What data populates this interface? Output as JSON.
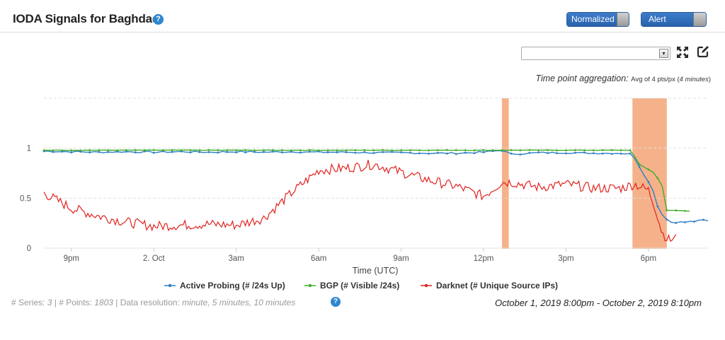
{
  "header": {
    "title": "IODA Signals for Baghdad",
    "help_glyph": "?",
    "normalized_label": "Normalized",
    "alert_bands_label": "Alert Bands"
  },
  "controls": {
    "select_value": "",
    "select_arrow": "▾",
    "fullscreen_icon": "fullscreen-icon",
    "edit_icon": "edit-icon"
  },
  "aggregation": {
    "label": "Time point aggregation:",
    "value_pre": "Avg of 4 pts/px (",
    "value_mid": "4 minutes",
    "value_post": ")"
  },
  "footer": {
    "series_label": "# Series: ",
    "series_value": "3",
    "sep1": " | ",
    "points_label": "# Points: ",
    "points_value": "1803",
    "sep2": " | ",
    "resolution_label": "Data resolution: ",
    "resolution_value": "minute, 5 minutes, 10 minutes",
    "range": "October 1, 2019 8:00pm - October 2, 2019 8:10pm"
  },
  "colors": {
    "active_probing": "#2f7ec4",
    "bgp": "#3fae2a",
    "darknet": "#e0231f",
    "alert_band": "#f3a476",
    "grid": "#e0e0e0"
  },
  "chart_data": {
    "type": "line",
    "title": "",
    "xlabel": "Time (UTC)",
    "ylabel": "",
    "x_start": "2019-10-01T20:00Z",
    "x_end": "2019-10-02T20:10Z",
    "x_ticks": [
      "9pm",
      "2. Oct",
      "3am",
      "6am",
      "9am",
      "12pm",
      "3pm",
      "6pm"
    ],
    "y_ticks": [
      "0",
      "0.5",
      "1"
    ],
    "ylim": [
      0,
      1.5
    ],
    "grid": true,
    "legend_position": "bottom",
    "alert_bands": [
      {
        "start": "2019-10-02T12:40Z",
        "end": "2019-10-02T12:55Z"
      },
      {
        "start": "2019-10-02T17:25Z",
        "end": "2019-10-02T18:40Z"
      }
    ],
    "series": [
      {
        "name": "Active Probing (# /24s Up)",
        "color": "#2f7ec4",
        "marker": "dot",
        "points": [
          [
            "2019-10-01T20:00Z",
            0.97
          ],
          [
            "2019-10-01T21:00Z",
            0.965
          ],
          [
            "2019-10-01T22:00Z",
            0.96
          ],
          [
            "2019-10-01T23:00Z",
            0.965
          ],
          [
            "2019-10-02T00:00Z",
            0.96
          ],
          [
            "2019-10-02T01:00Z",
            0.965
          ],
          [
            "2019-10-02T02:00Z",
            0.96
          ],
          [
            "2019-10-02T03:00Z",
            0.965
          ],
          [
            "2019-10-02T04:00Z",
            0.96
          ],
          [
            "2019-10-02T05:00Z",
            0.965
          ],
          [
            "2019-10-02T06:00Z",
            0.96
          ],
          [
            "2019-10-02T07:00Z",
            0.96
          ],
          [
            "2019-10-02T08:00Z",
            0.955
          ],
          [
            "2019-10-02T09:00Z",
            0.955
          ],
          [
            "2019-10-02T10:00Z",
            0.95
          ],
          [
            "2019-10-02T11:00Z",
            0.95
          ],
          [
            "2019-10-02T12:00Z",
            0.96
          ],
          [
            "2019-10-02T12:40Z",
            0.98
          ],
          [
            "2019-10-02T13:00Z",
            0.94
          ],
          [
            "2019-10-02T14:00Z",
            0.955
          ],
          [
            "2019-10-02T15:00Z",
            0.955
          ],
          [
            "2019-10-02T16:00Z",
            0.95
          ],
          [
            "2019-10-02T17:00Z",
            0.95
          ],
          [
            "2019-10-02T17:25Z",
            0.94
          ],
          [
            "2019-10-02T17:40Z",
            0.82
          ],
          [
            "2019-10-02T17:55Z",
            0.7
          ],
          [
            "2019-10-02T18:10Z",
            0.58
          ],
          [
            "2019-10-02T18:20Z",
            0.42
          ],
          [
            "2019-10-02T18:35Z",
            0.3
          ],
          [
            "2019-10-02T18:50Z",
            0.26
          ],
          [
            "2019-10-02T19:20Z",
            0.26
          ],
          [
            "2019-10-02T19:45Z",
            0.27
          ],
          [
            "2019-10-02T20:00Z",
            0.28
          ],
          [
            "2019-10-02T20:10Z",
            0.27
          ]
        ]
      },
      {
        "name": "BGP (# Visible /24s)",
        "color": "#3fae2a",
        "marker": "dot",
        "points": [
          [
            "2019-10-01T20:00Z",
            0.98
          ],
          [
            "2019-10-02T05:00Z",
            0.98
          ],
          [
            "2019-10-02T10:00Z",
            0.98
          ],
          [
            "2019-10-02T12:40Z",
            0.98
          ],
          [
            "2019-10-02T15:00Z",
            0.98
          ],
          [
            "2019-10-02T17:25Z",
            0.98
          ],
          [
            "2019-10-02T17:35Z",
            0.85
          ],
          [
            "2019-10-02T17:55Z",
            0.8
          ],
          [
            "2019-10-02T18:10Z",
            0.76
          ],
          [
            "2019-10-02T18:20Z",
            0.7
          ],
          [
            "2019-10-02T18:30Z",
            0.62
          ],
          [
            "2019-10-02T18:40Z",
            0.38
          ],
          [
            "2019-10-02T19:30Z",
            0.37
          ]
        ]
      },
      {
        "name": "Darknet (# Unique Source IPs)",
        "color": "#e0231f",
        "marker": "dot",
        "points": [
          [
            "2019-10-01T20:00Z",
            0.55
          ],
          [
            "2019-10-01T21:00Z",
            0.4
          ],
          [
            "2019-10-01T22:00Z",
            0.32
          ],
          [
            "2019-10-01T23:00Z",
            0.26
          ],
          [
            "2019-10-02T00:00Z",
            0.22
          ],
          [
            "2019-10-02T01:00Z",
            0.23
          ],
          [
            "2019-10-02T02:00Z",
            0.24
          ],
          [
            "2019-10-02T03:00Z",
            0.23
          ],
          [
            "2019-10-02T04:00Z",
            0.3
          ],
          [
            "2019-10-02T05:00Z",
            0.55
          ],
          [
            "2019-10-02T06:00Z",
            0.78
          ],
          [
            "2019-10-02T07:00Z",
            0.8
          ],
          [
            "2019-10-02T08:00Z",
            0.84
          ],
          [
            "2019-10-02T09:00Z",
            0.76
          ],
          [
            "2019-10-02T10:00Z",
            0.68
          ],
          [
            "2019-10-02T11:00Z",
            0.62
          ],
          [
            "2019-10-02T12:00Z",
            0.52
          ],
          [
            "2019-10-02T12:40Z",
            0.66
          ],
          [
            "2019-10-02T13:00Z",
            0.66
          ],
          [
            "2019-10-02T14:00Z",
            0.61
          ],
          [
            "2019-10-02T15:00Z",
            0.64
          ],
          [
            "2019-10-02T16:00Z",
            0.6
          ],
          [
            "2019-10-02T17:00Z",
            0.6
          ],
          [
            "2019-10-02T17:30Z",
            0.64
          ],
          [
            "2019-10-02T18:00Z",
            0.58
          ],
          [
            "2019-10-02T18:15Z",
            0.4
          ],
          [
            "2019-10-02T18:30Z",
            0.15
          ],
          [
            "2019-10-02T18:45Z",
            0.08
          ],
          [
            "2019-10-02T19:00Z",
            0.1
          ]
        ]
      }
    ]
  }
}
